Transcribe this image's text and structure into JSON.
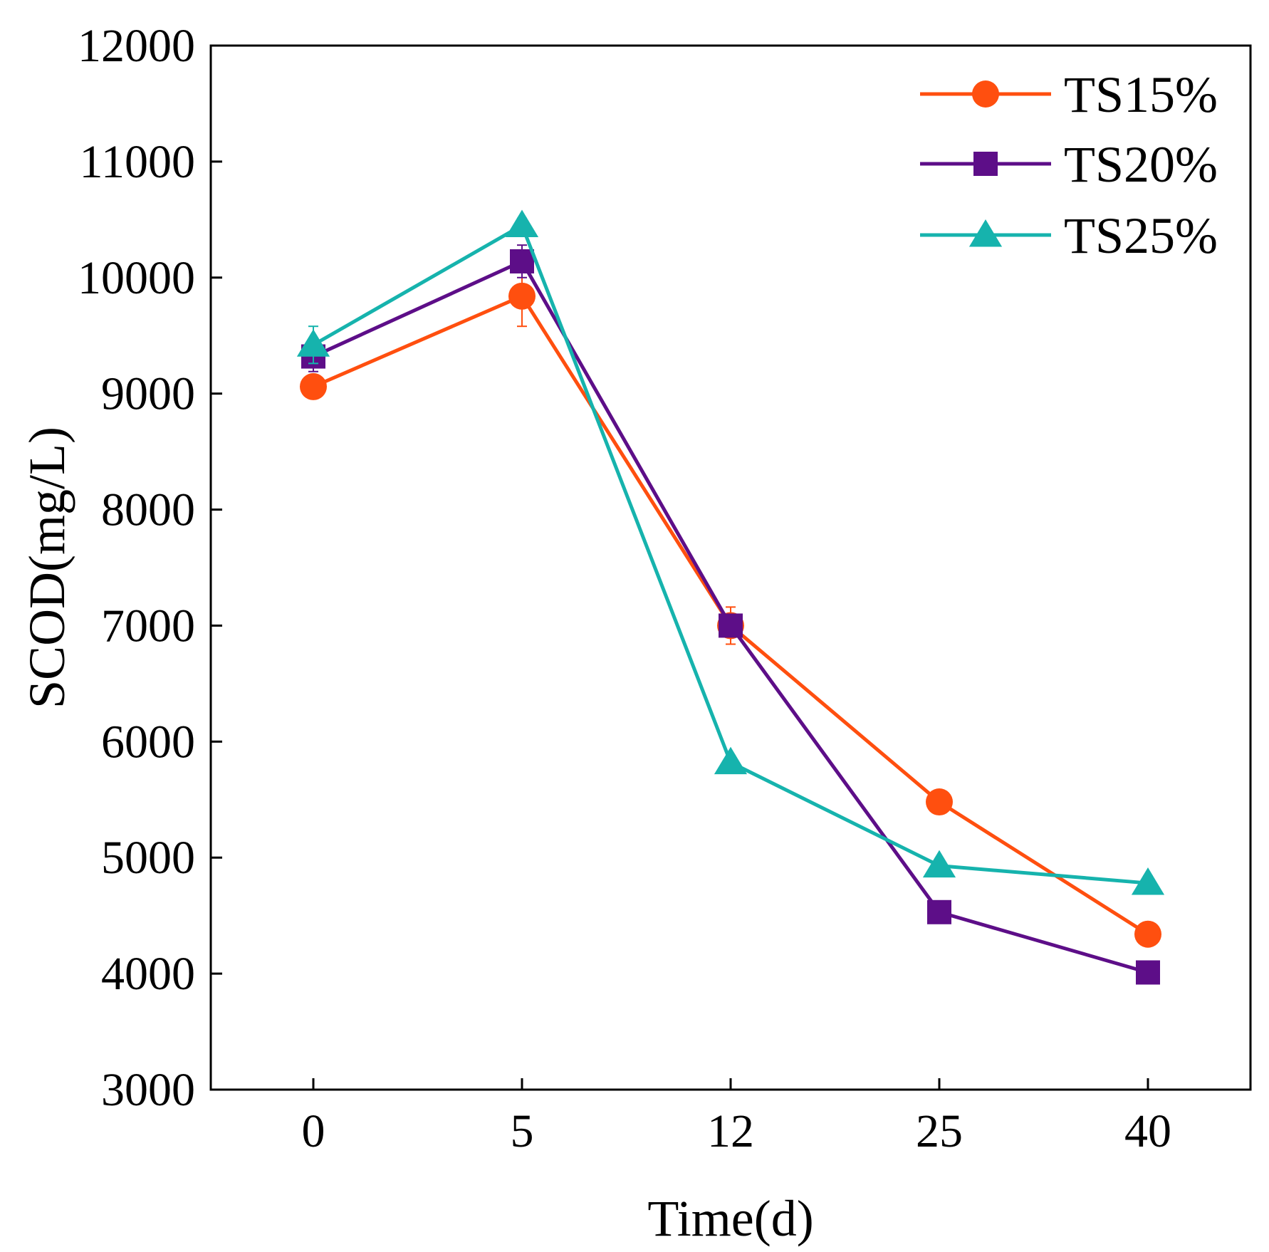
{
  "chart_data": {
    "type": "line",
    "title": "",
    "xlabel": "Time(d)",
    "ylabel": "SCOD(mg/L)",
    "categories": [
      "0",
      "5",
      "12",
      "25",
      "40"
    ],
    "ylim": [
      3000,
      12000
    ],
    "yticks": [
      "3000",
      "4000",
      "5000",
      "6000",
      "7000",
      "8000",
      "9000",
      "10000",
      "11000",
      "12000"
    ],
    "grid": false,
    "legend_position": "top-right",
    "series": [
      {
        "name": "TS15%",
        "color": "#ff4f0f",
        "marker": "circle",
        "values": [
          9060,
          9840,
          7000,
          5480,
          4340
        ],
        "errors": [
          60,
          260,
          160,
          60,
          60
        ]
      },
      {
        "name": "TS20%",
        "color": "#5d0e88",
        "marker": "square",
        "values": [
          9320,
          10140,
          7000,
          4530,
          4010
        ],
        "errors": [
          130,
          140,
          80,
          60,
          60
        ]
      },
      {
        "name": "TS25%",
        "color": "#16b3ad",
        "marker": "triangle",
        "values": [
          9420,
          10450,
          5820,
          4930,
          4780
        ],
        "errors": [
          160,
          60,
          60,
          60,
          60
        ]
      }
    ]
  }
}
